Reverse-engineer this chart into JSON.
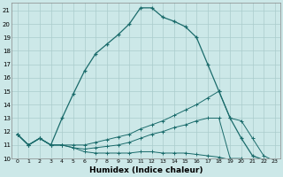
{
  "xlabel": "Humidex (Indice chaleur)",
  "bg_color": "#cce8e8",
  "grid_color": "#aacccc",
  "line_color": "#1a6b6b",
  "xlim": [
    -0.5,
    23.5
  ],
  "ylim": [
    10,
    21.6
  ],
  "xticks": [
    0,
    1,
    2,
    3,
    4,
    5,
    6,
    7,
    8,
    9,
    10,
    11,
    12,
    13,
    14,
    15,
    16,
    17,
    18,
    19,
    20,
    21,
    22,
    23
  ],
  "yticks": [
    10,
    11,
    12,
    13,
    14,
    15,
    16,
    17,
    18,
    19,
    20,
    21
  ],
  "line1_x": [
    0,
    1,
    2,
    3,
    4,
    5,
    6,
    7,
    8,
    9,
    10,
    11,
    12,
    13,
    14,
    15,
    16,
    17,
    18,
    19,
    20,
    21,
    22,
    23
  ],
  "line1_y": [
    11.8,
    11.0,
    11.5,
    11.0,
    13.0,
    14.8,
    16.5,
    17.8,
    18.5,
    19.2,
    20.0,
    21.2,
    21.2,
    20.5,
    20.2,
    19.8,
    19.0,
    17.0,
    15.0,
    13.0,
    11.5,
    10.2,
    9.9,
    9.8
  ],
  "line2_x": [
    0,
    1,
    2,
    3,
    4,
    5,
    6,
    7,
    8,
    9,
    10,
    11,
    12,
    13,
    14,
    15,
    16,
    17,
    18,
    19,
    20,
    21,
    22,
    23
  ],
  "line2_y": [
    11.8,
    11.0,
    11.5,
    11.0,
    11.0,
    11.0,
    11.0,
    11.2,
    11.4,
    11.6,
    11.8,
    12.2,
    12.5,
    12.8,
    13.2,
    13.6,
    14.0,
    14.5,
    15.0,
    13.0,
    12.8,
    11.5,
    10.2,
    9.8
  ],
  "line3_x": [
    0,
    1,
    2,
    3,
    4,
    5,
    6,
    7,
    8,
    9,
    10,
    11,
    12,
    13,
    14,
    15,
    16,
    17,
    18,
    19,
    20,
    21,
    22,
    23
  ],
  "line3_y": [
    11.8,
    11.0,
    11.5,
    11.0,
    11.0,
    10.8,
    10.7,
    10.8,
    10.9,
    11.0,
    11.2,
    11.5,
    11.8,
    12.0,
    12.3,
    12.5,
    12.8,
    13.0,
    13.0,
    10.0,
    10.0,
    9.8,
    9.9,
    9.8
  ],
  "line4_x": [
    0,
    1,
    2,
    3,
    4,
    5,
    6,
    7,
    8,
    9,
    10,
    11,
    12,
    13,
    14,
    15,
    16,
    17,
    18,
    19,
    20,
    21,
    22,
    23
  ],
  "line4_y": [
    11.8,
    11.0,
    11.5,
    11.0,
    11.0,
    10.8,
    10.5,
    10.4,
    10.4,
    10.4,
    10.4,
    10.5,
    10.5,
    10.4,
    10.4,
    10.4,
    10.3,
    10.2,
    10.1,
    9.9,
    9.9,
    9.8,
    9.9,
    9.8
  ]
}
